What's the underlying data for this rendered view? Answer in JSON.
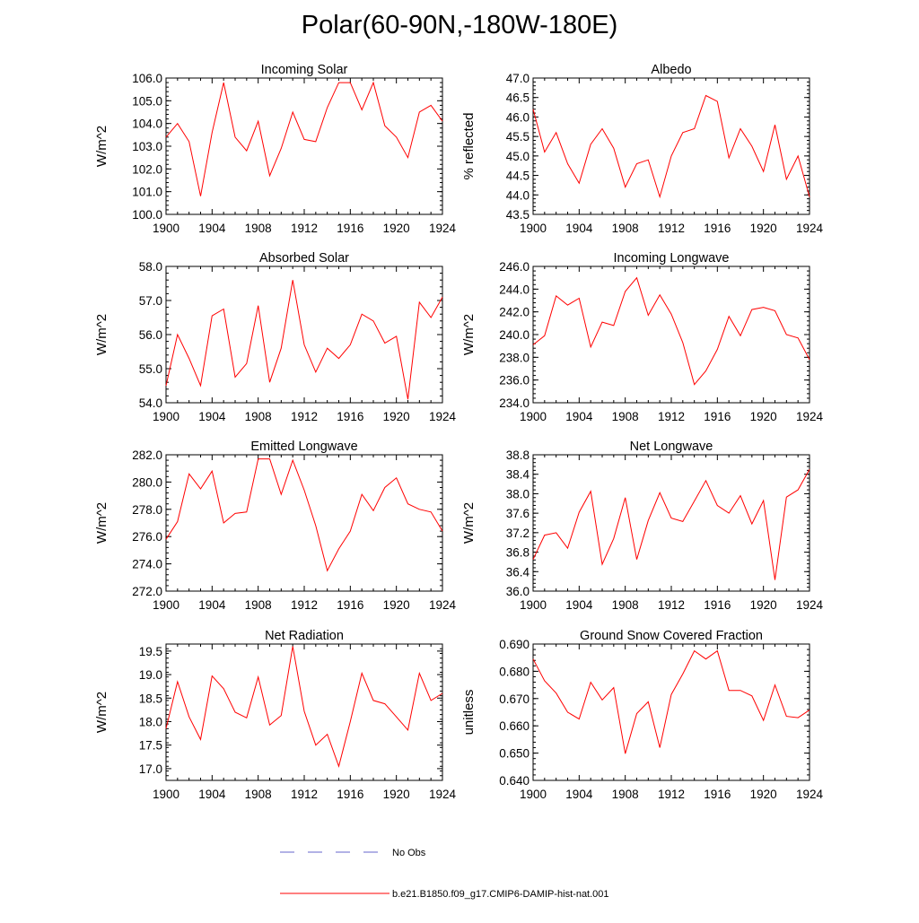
{
  "page": {
    "title": "Polar(60-90N,-180W-180E)"
  },
  "legend": {
    "items": [
      {
        "label": "No Obs",
        "color": "#6666cc",
        "style": "dashed"
      },
      {
        "label": "b.e21.B1850.f09_g17.CMIP6-DAMIP-hist-nat.001",
        "color": "#ff0000",
        "style": "solid"
      }
    ]
  },
  "chart_data": [
    {
      "type": "line",
      "title": "Incoming Solar",
      "xlabel": "",
      "ylabel": "W/m^2",
      "xlim": [
        1900,
        1924
      ],
      "ylim": [
        100.0,
        106.0
      ],
      "xticks": [
        "1900",
        "1904",
        "1908",
        "1912",
        "1916",
        "1920",
        "1924"
      ],
      "yticks": [
        "100.0",
        "101.0",
        "102.0",
        "103.0",
        "104.0",
        "105.0",
        "106.0"
      ],
      "series": [
        {
          "color": "#ff0000",
          "x": [
            1900,
            1901,
            1902,
            1903,
            1904,
            1905,
            1906,
            1907,
            1908,
            1909,
            1910,
            1911,
            1912,
            1913,
            1914,
            1915,
            1916,
            1917,
            1918,
            1919,
            1920,
            1921,
            1922,
            1923,
            1924
          ],
          "y": [
            103.4,
            104.0,
            103.2,
            100.8,
            103.6,
            105.8,
            103.4,
            102.8,
            104.1,
            101.7,
            102.9,
            104.5,
            103.3,
            103.2,
            104.7,
            105.8,
            105.8,
            104.6,
            105.8,
            103.9,
            103.4,
            102.5,
            104.5,
            104.8,
            104.1
          ]
        }
      ]
    },
    {
      "type": "line",
      "title": "Albedo",
      "xlabel": "",
      "ylabel": "% reflected",
      "xlim": [
        1900,
        1924
      ],
      "ylim": [
        43.5,
        47.0
      ],
      "xticks": [
        "1900",
        "1904",
        "1908",
        "1912",
        "1916",
        "1920",
        "1924"
      ],
      "yticks": [
        "43.5",
        "44.0",
        "44.5",
        "45.0",
        "45.5",
        "46.0",
        "46.5",
        "47.0"
      ],
      "series": [
        {
          "color": "#ff0000",
          "x": [
            1900,
            1901,
            1902,
            1903,
            1904,
            1905,
            1906,
            1907,
            1908,
            1909,
            1910,
            1911,
            1912,
            1913,
            1914,
            1915,
            1916,
            1917,
            1918,
            1919,
            1920,
            1921,
            1922,
            1923,
            1924
          ],
          "y": [
            46.2,
            45.1,
            45.6,
            44.8,
            44.3,
            45.3,
            45.7,
            45.2,
            44.2,
            44.8,
            44.9,
            43.95,
            45.0,
            45.6,
            45.7,
            46.55,
            46.4,
            44.95,
            45.7,
            45.25,
            44.6,
            45.8,
            44.4,
            45.0,
            43.95
          ]
        }
      ]
    },
    {
      "type": "line",
      "title": "Absorbed Solar",
      "xlabel": "",
      "ylabel": "W/m^2",
      "xlim": [
        1900,
        1924
      ],
      "ylim": [
        54.0,
        58.0
      ],
      "xticks": [
        "1900",
        "1904",
        "1908",
        "1912",
        "1916",
        "1920",
        "1924"
      ],
      "yticks": [
        "54.0",
        "55.0",
        "56.0",
        "57.0",
        "58.0"
      ],
      "series": [
        {
          "color": "#ff0000",
          "x": [
            1900,
            1901,
            1902,
            1903,
            1904,
            1905,
            1906,
            1907,
            1908,
            1909,
            1910,
            1911,
            1912,
            1913,
            1914,
            1915,
            1916,
            1917,
            1918,
            1919,
            1920,
            1921,
            1922,
            1923,
            1924
          ],
          "y": [
            54.5,
            56.0,
            55.3,
            54.5,
            56.55,
            56.75,
            54.75,
            55.15,
            56.85,
            54.6,
            55.6,
            57.6,
            55.7,
            54.9,
            55.6,
            55.3,
            55.7,
            56.6,
            56.4,
            55.75,
            55.95,
            54.1,
            56.95,
            56.5,
            57.1
          ]
        }
      ]
    },
    {
      "type": "line",
      "title": "Incoming Longwave",
      "xlabel": "",
      "ylabel": "W/m^2",
      "xlim": [
        1900,
        1924
      ],
      "ylim": [
        234.0,
        246.0
      ],
      "xticks": [
        "1900",
        "1904",
        "1908",
        "1912",
        "1916",
        "1920",
        "1924"
      ],
      "yticks": [
        "234.0",
        "236.0",
        "238.0",
        "240.0",
        "242.0",
        "244.0",
        "246.0"
      ],
      "series": [
        {
          "color": "#ff0000",
          "x": [
            1900,
            1901,
            1902,
            1903,
            1904,
            1905,
            1906,
            1907,
            1908,
            1909,
            1910,
            1911,
            1912,
            1913,
            1914,
            1915,
            1916,
            1917,
            1918,
            1919,
            1920,
            1921,
            1922,
            1923,
            1924
          ],
          "y": [
            239.1,
            239.9,
            243.4,
            242.6,
            243.2,
            238.9,
            241.1,
            240.8,
            243.8,
            245.0,
            241.7,
            243.5,
            241.8,
            239.3,
            235.6,
            236.8,
            238.7,
            241.6,
            239.9,
            242.2,
            242.4,
            242.1,
            240.0,
            239.7,
            237.8
          ]
        }
      ]
    },
    {
      "type": "line",
      "title": "Emitted Longwave",
      "xlabel": "",
      "ylabel": "W/m^2",
      "xlim": [
        1900,
        1924
      ],
      "ylim": [
        272.0,
        282.0
      ],
      "xticks": [
        "1900",
        "1904",
        "1908",
        "1912",
        "1916",
        "1920",
        "1924"
      ],
      "yticks": [
        "272.0",
        "274.0",
        "276.0",
        "278.0",
        "280.0",
        "282.0"
      ],
      "series": [
        {
          "color": "#ff0000",
          "x": [
            1900,
            1901,
            1902,
            1903,
            1904,
            1905,
            1906,
            1907,
            1908,
            1909,
            1910,
            1911,
            1912,
            1913,
            1914,
            1915,
            1916,
            1917,
            1918,
            1919,
            1920,
            1921,
            1922,
            1923,
            1924
          ],
          "y": [
            275.8,
            277.1,
            280.6,
            279.5,
            280.8,
            277.0,
            277.7,
            277.8,
            281.7,
            281.7,
            279.1,
            281.6,
            279.4,
            276.8,
            273.5,
            275.1,
            276.4,
            279.1,
            277.9,
            279.6,
            280.3,
            278.4,
            278.0,
            277.8,
            276.4
          ]
        }
      ]
    },
    {
      "type": "line",
      "title": "Net Longwave",
      "xlabel": "",
      "ylabel": "W/m^2",
      "xlim": [
        1900,
        1924
      ],
      "ylim": [
        36.0,
        38.8
      ],
      "xticks": [
        "1900",
        "1904",
        "1908",
        "1912",
        "1916",
        "1920",
        "1924"
      ],
      "yticks": [
        "36.0",
        "36.4",
        "36.8",
        "37.2",
        "37.6",
        "38.0",
        "38.4",
        "38.8"
      ],
      "series": [
        {
          "color": "#ff0000",
          "x": [
            1900,
            1901,
            1902,
            1903,
            1904,
            1905,
            1906,
            1907,
            1908,
            1909,
            1910,
            1911,
            1912,
            1913,
            1914,
            1915,
            1916,
            1917,
            1918,
            1919,
            1920,
            1921,
            1922,
            1923,
            1924
          ],
          "y": [
            36.65,
            37.15,
            37.2,
            36.88,
            37.62,
            38.05,
            36.55,
            37.08,
            37.92,
            36.65,
            37.45,
            38.02,
            37.5,
            37.43,
            37.85,
            38.27,
            37.76,
            37.6,
            37.96,
            37.38,
            37.86,
            36.23,
            37.93,
            38.08,
            38.5
          ]
        }
      ]
    },
    {
      "type": "line",
      "title": "Net Radiation",
      "xlabel": "",
      "ylabel": "W/m^2",
      "xlim": [
        1900,
        1924
      ],
      "ylim": [
        16.75,
        19.65
      ],
      "xticks": [
        "1900",
        "1904",
        "1908",
        "1912",
        "1916",
        "1920",
        "1924"
      ],
      "yticks": [
        "17.0",
        "17.5",
        "18.0",
        "18.5",
        "19.0",
        "19.5"
      ],
      "series": [
        {
          "color": "#ff0000",
          "x": [
            1900,
            1901,
            1902,
            1903,
            1904,
            1905,
            1906,
            1907,
            1908,
            1909,
            1910,
            1911,
            1912,
            1913,
            1914,
            1915,
            1916,
            1917,
            1918,
            1919,
            1920,
            1921,
            1922,
            1923,
            1924
          ],
          "y": [
            17.85,
            18.85,
            18.1,
            17.62,
            18.97,
            18.7,
            18.2,
            18.08,
            18.95,
            17.93,
            18.13,
            19.6,
            18.22,
            17.5,
            17.73,
            17.05,
            18.0,
            19.03,
            18.45,
            18.38,
            18.1,
            17.82,
            19.03,
            18.45,
            18.6
          ]
        }
      ]
    },
    {
      "type": "line",
      "title": "Ground Snow Covered Fraction",
      "xlabel": "",
      "ylabel": "unitless",
      "xlim": [
        1900,
        1924
      ],
      "ylim": [
        0.64,
        0.69
      ],
      "xticks": [
        "1900",
        "1904",
        "1908",
        "1912",
        "1916",
        "1920",
        "1924"
      ],
      "yticks": [
        "0.640",
        "0.650",
        "0.660",
        "0.670",
        "0.680",
        "0.690"
      ],
      "series": [
        {
          "color": "#ff0000",
          "x": [
            1900,
            1901,
            1902,
            1903,
            1904,
            1905,
            1906,
            1907,
            1908,
            1909,
            1910,
            1911,
            1912,
            1913,
            1914,
            1915,
            1916,
            1917,
            1918,
            1919,
            1920,
            1921,
            1922,
            1923,
            1924
          ],
          "y": [
            0.6845,
            0.6765,
            0.672,
            0.665,
            0.6625,
            0.676,
            0.6695,
            0.674,
            0.6498,
            0.6645,
            0.6688,
            0.652,
            0.6715,
            0.679,
            0.6875,
            0.6845,
            0.6875,
            0.673,
            0.673,
            0.671,
            0.662,
            0.675,
            0.6635,
            0.663,
            0.6658
          ]
        }
      ]
    }
  ]
}
